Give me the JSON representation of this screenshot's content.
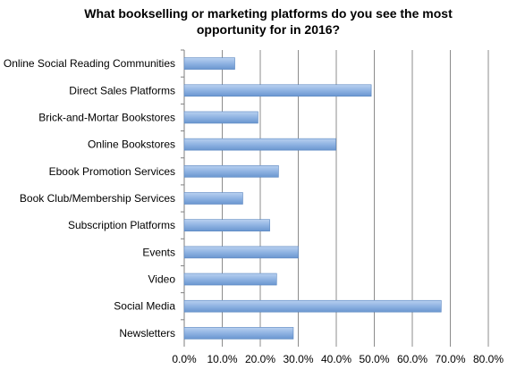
{
  "chart_data": {
    "type": "bar",
    "orientation": "horizontal",
    "title": "What bookselling or marketing platforms do you see the most opportunity for in 2016?",
    "categories": [
      "Online Social Reading Communities",
      "Direct Sales Platforms",
      "Brick-and-Mortar Bookstores",
      "Online Bookstores",
      "Ebook Promotion Services",
      "Book Club/Membership Services",
      "Subscription Platforms",
      "Events",
      "Video",
      "Social Media",
      "Newsletters"
    ],
    "values": [
      13.3,
      49.2,
      19.4,
      39.9,
      24.8,
      15.4,
      22.5,
      30.0,
      24.3,
      67.6,
      28.7
    ],
    "xlim": [
      0,
      80
    ],
    "xticks": [
      "0.0%",
      "10.0%",
      "20.0%",
      "30.0%",
      "40.0%",
      "50.0%",
      "60.0%",
      "70.0%",
      "80.0%"
    ],
    "grid": "vertical",
    "bar_color": "#7ea7d8"
  }
}
